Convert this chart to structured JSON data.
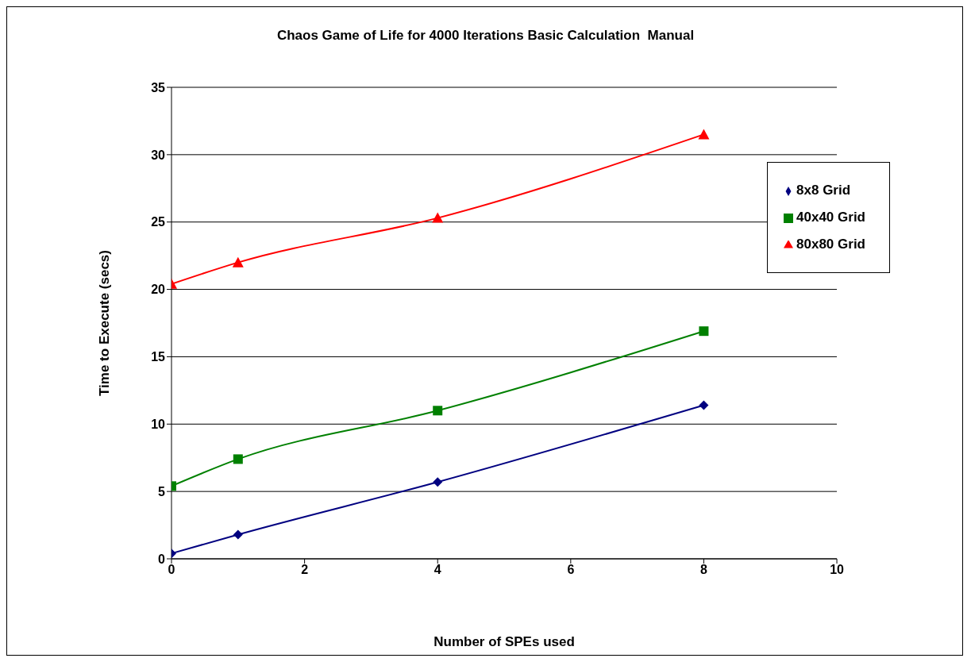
{
  "chart_data": {
    "type": "line",
    "title": "Chaos Game of Life for 4000 Iterations Basic Calculation  Manual",
    "xlabel": "Number of SPEs used",
    "ylabel": "Time to Execute (secs)",
    "x": [
      0,
      1,
      4,
      8
    ],
    "series": [
      {
        "name": "8x8 Grid",
        "color": "#000080",
        "marker": "diamond",
        "values": [
          0.4,
          1.8,
          5.7,
          11.4
        ]
      },
      {
        "name": "40x40 Grid",
        "color": "#008000",
        "marker": "square",
        "values": [
          5.4,
          7.4,
          11.0,
          16.9
        ]
      },
      {
        "name": "80x80 Grid",
        "color": "#ff0000",
        "marker": "triangle",
        "values": [
          20.4,
          22.0,
          25.3,
          31.5
        ]
      }
    ],
    "xlim": [
      0,
      10
    ],
    "xticks": [
      0,
      2,
      4,
      6,
      8,
      10
    ],
    "ylim": [
      0,
      35
    ],
    "yticks": [
      0,
      5,
      10,
      15,
      20,
      25,
      30,
      35
    ],
    "grid": "y",
    "legend": "right",
    "line_style": "solid"
  }
}
